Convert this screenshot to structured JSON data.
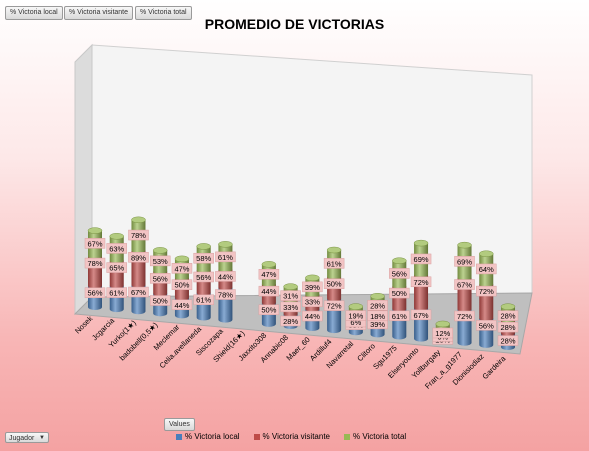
{
  "field_buttons": [
    "% Victoria local",
    "% Victoria visitante",
    "% Victoria total"
  ],
  "values_button": "Values",
  "row_filter": {
    "label": "Jugador",
    "icon": "dropdown-arrow-icon"
  },
  "colors": {
    "local": "#4a7ebb",
    "visitante": "#be4b48",
    "total": "#98b954",
    "label_bg": "#f2c4c4"
  },
  "chart_data": {
    "type": "bar",
    "stacked": true,
    "style": "3d-cylinder",
    "title": "PROMEDIO DE VICTORIAS",
    "xlabel": "",
    "ylabel": "",
    "legend": "bottom",
    "categories": [
      "Nosek",
      "Jcgarcia",
      "Yurko(1★)",
      "badobell(0,5★)",
      "Meclemar",
      "Celia.avellaneda",
      "Siscozapa",
      "Shield(16★)",
      "Jaxxito308",
      "Annabic08",
      "Maer_60",
      "Ardilluf4",
      "Navarretal",
      "Clitoro",
      "Sgu1975",
      "Elseryounto",
      "Yollburgaty",
      "Fran_a_g1977",
      "Dionisiodiaz",
      "Gardeira"
    ],
    "series": [
      {
        "name": "% Victoria local",
        "values": [
          56,
          61,
          67,
          50,
          44,
          61,
          78,
          null,
          50,
          28,
          44,
          72,
          33,
          39,
          61,
          67,
          18,
          72,
          56,
          28
        ]
      },
      {
        "name": "% Victoria visitante",
        "values": [
          78,
          65,
          89,
          56,
          50,
          56,
          44,
          null,
          44,
          33,
          33,
          50,
          6,
          18,
          50,
          72,
          6,
          67,
          72,
          28
        ]
      },
      {
        "name": "% Victoria total",
        "values": [
          67,
          63,
          78,
          53,
          47,
          58,
          61,
          null,
          47,
          31,
          39,
          61,
          19,
          28,
          56,
          69,
          12,
          69,
          64,
          28
        ]
      }
    ]
  }
}
